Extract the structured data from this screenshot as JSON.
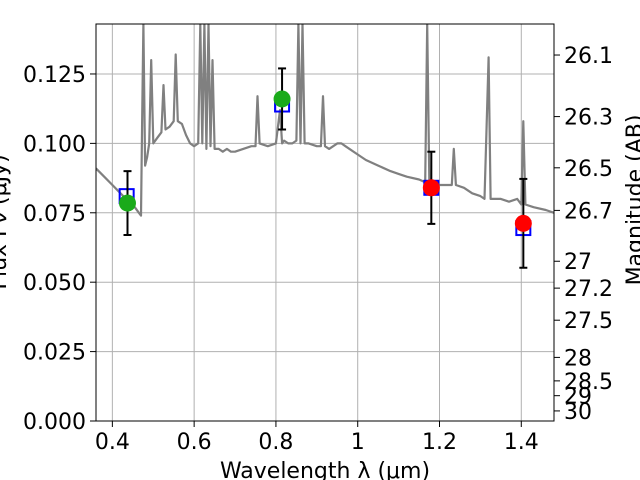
{
  "chart_data": {
    "type": "scatter",
    "title": "",
    "xlabel": "Wavelength λ (μm)",
    "ylabel": "Flux Fν (μJy)",
    "ylabel_right": "Magnitude (AB)",
    "xlim": [
      0.36,
      1.48
    ],
    "ylim": [
      0.0,
      0.143
    ],
    "grid": true,
    "x_ticks": [
      0.4,
      0.6,
      0.8,
      1.0,
      1.2,
      1.4
    ],
    "x_tick_labels": [
      "0.4",
      "0.6",
      "0.8",
      "1",
      "1.2",
      "1.4"
    ],
    "y_ticks": [
      0.0,
      0.025,
      0.05,
      0.075,
      0.1,
      0.125
    ],
    "y_tick_labels": [
      "0.000",
      "0.025",
      "0.050",
      "0.075",
      "0.100",
      "0.125"
    ],
    "right_ticks_mag": [
      26.1,
      26.3,
      26.5,
      26.7,
      27,
      27.2,
      27.5,
      28,
      28.5,
      29,
      30
    ],
    "right_tick_labels": [
      "26.1",
      "26.3",
      "26.5",
      "26.7",
      "27",
      "27.2",
      "27.5",
      "28",
      "28.5",
      "29",
      "30"
    ],
    "colors": {
      "spectrum": "#808080",
      "model_marker": "#0000ff",
      "detection_green": "#1aaa1a",
      "detection_red": "#ff0000",
      "errorbar": "#000000",
      "grid": "#b0b0b0"
    },
    "series": [
      {
        "kind": "line",
        "x": [
          0.36,
          0.38,
          0.4,
          0.42,
          0.44,
          0.455,
          0.465,
          0.47,
          0.473,
          0.476,
          0.48,
          0.485,
          0.49,
          0.495,
          0.5,
          0.51,
          0.52,
          0.525,
          0.53,
          0.54,
          0.55,
          0.555,
          0.56,
          0.57,
          0.58,
          0.59,
          0.6,
          0.61,
          0.615,
          0.62,
          0.625,
          0.63,
          0.635,
          0.64,
          0.645,
          0.65,
          0.66,
          0.67,
          0.68,
          0.69,
          0.7,
          0.72,
          0.74,
          0.75,
          0.755,
          0.76,
          0.78,
          0.8,
          0.81,
          0.815,
          0.82,
          0.83,
          0.84,
          0.85,
          0.855,
          0.86,
          0.865,
          0.87,
          0.88,
          0.9,
          0.91,
          0.915,
          0.92,
          0.93,
          0.95,
          0.96,
          0.97,
          1.0,
          1.02,
          1.05,
          1.08,
          1.1,
          1.12,
          1.15,
          1.165,
          1.17,
          1.175,
          1.18,
          1.2,
          1.23,
          1.235,
          1.24,
          1.26,
          1.28,
          1.3,
          1.31,
          1.32,
          1.325,
          1.33,
          1.35,
          1.37,
          1.39,
          1.4,
          1.405,
          1.41,
          1.43,
          1.46,
          1.48
        ],
        "y": [
          0.091,
          0.088,
          0.085,
          0.082,
          0.079,
          0.077,
          0.075,
          0.074,
          0.11,
          0.143,
          0.092,
          0.095,
          0.1,
          0.13,
          0.1,
          0.102,
          0.104,
          0.121,
          0.105,
          0.106,
          0.108,
          0.132,
          0.108,
          0.107,
          0.103,
          0.1,
          0.099,
          0.1,
          0.143,
          0.1,
          0.143,
          0.098,
          0.143,
          0.099,
          0.13,
          0.098,
          0.098,
          0.097,
          0.098,
          0.097,
          0.097,
          0.098,
          0.099,
          0.099,
          0.117,
          0.1,
          0.099,
          0.1,
          0.112,
          0.1,
          0.101,
          0.1,
          0.1,
          0.101,
          0.143,
          0.1,
          0.143,
          0.1,
          0.1,
          0.099,
          0.099,
          0.117,
          0.099,
          0.098,
          0.1,
          0.1,
          0.099,
          0.096,
          0.094,
          0.092,
          0.09,
          0.089,
          0.088,
          0.087,
          0.086,
          0.143,
          0.087,
          0.085,
          0.085,
          0.085,
          0.098,
          0.085,
          0.084,
          0.082,
          0.081,
          0.08,
          0.131,
          0.08,
          0.08,
          0.08,
          0.079,
          0.08,
          0.078,
          0.108,
          0.078,
          0.077,
          0.076,
          0.075
        ]
      },
      {
        "kind": "model_squares",
        "x": [
          0.435,
          0.815,
          1.18,
          1.405
        ],
        "y": [
          0.081,
          0.114,
          0.084,
          0.0695
        ]
      },
      {
        "kind": "detections",
        "points": [
          {
            "x": 0.437,
            "y": 0.0785,
            "err": 0.0115,
            "color": "green"
          },
          {
            "x": 0.815,
            "y": 0.116,
            "err": 0.011,
            "color": "green"
          },
          {
            "x": 1.18,
            "y": 0.084,
            "err": 0.013,
            "color": "red"
          },
          {
            "x": 1.405,
            "y": 0.0712,
            "err": 0.016,
            "color": "red"
          }
        ]
      }
    ]
  }
}
